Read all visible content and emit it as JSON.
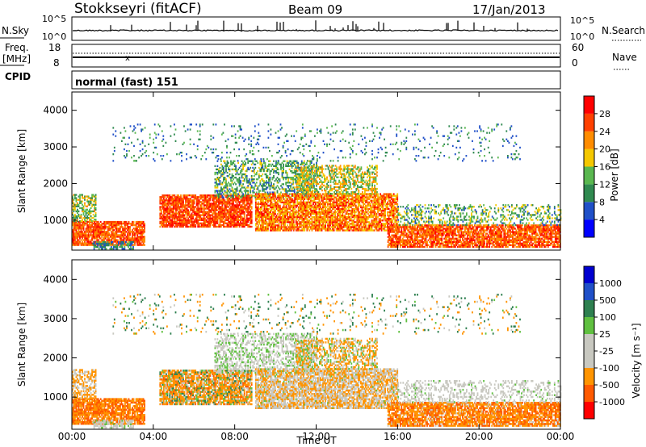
{
  "header": {
    "station": "Stokkseyri (fitACF)",
    "beam": "Beam 09",
    "date": "17/Jan/2013"
  },
  "sky_panel": {
    "left_label": "N.Sky",
    "left_ticks": [
      "10^5",
      "10^0"
    ],
    "right_label": "N.Search",
    "right_ticks": [
      "10^5",
      "10^0"
    ]
  },
  "freq_panel": {
    "left_label_1": "Freq.",
    "left_label_2": "[MHz]",
    "left_ticks": [
      "18",
      "8"
    ],
    "right_label": "Nave",
    "right_ticks": [
      "60",
      "0"
    ]
  },
  "cpid": {
    "label": "CPID",
    "mode": "normal (fast) 151"
  },
  "colors": {
    "power_scale": [
      "#0000ff",
      "#2050c8",
      "#308a50",
      "#5ab850",
      "#f5c800",
      "#ff8c00",
      "#ff4000",
      "#ff0000"
    ],
    "velocity_scale": [
      "#ff0000",
      "#ff5a00",
      "#ff9400",
      "#c8c8c0",
      "#c8c8c0",
      "#60c040",
      "#2e8050",
      "#2050c8",
      "#0000d0"
    ]
  },
  "chart_data": [
    {
      "type": "heatmap",
      "name": "power",
      "ylabel": "Slant Range [km]",
      "yticks": [
        "1000",
        "2000",
        "3000",
        "4000"
      ],
      "ylim": [
        180,
        4500
      ],
      "xlim": [
        0,
        24
      ],
      "xticks": [
        "00:00",
        "04:00",
        "08:00",
        "12:00",
        "16:00",
        "20:00",
        "00:00"
      ],
      "colorbar_label": "Power [dB]",
      "colorbar_ticks": [
        "4",
        "8",
        "12",
        "16",
        "20",
        "24",
        "28"
      ],
      "colorbar_range": [
        0,
        32
      ]
    },
    {
      "type": "heatmap",
      "name": "velocity",
      "ylabel": "Slant Range [km]",
      "yticks": [
        "1000",
        "2000",
        "3000",
        "4000"
      ],
      "ylim": [
        180,
        4500
      ],
      "xlim": [
        0,
        24
      ],
      "xticks": [
        "00:00",
        "04:00",
        "08:00",
        "12:00",
        "16:00",
        "20:00",
        "00:00"
      ],
      "xlabel": "Time UT",
      "colorbar_label": "Velocity [m s⁻¹]",
      "colorbar_ticks": [
        "1000",
        "500",
        "100",
        "25",
        "-25",
        "-100",
        "-500",
        "-1000"
      ]
    }
  ]
}
